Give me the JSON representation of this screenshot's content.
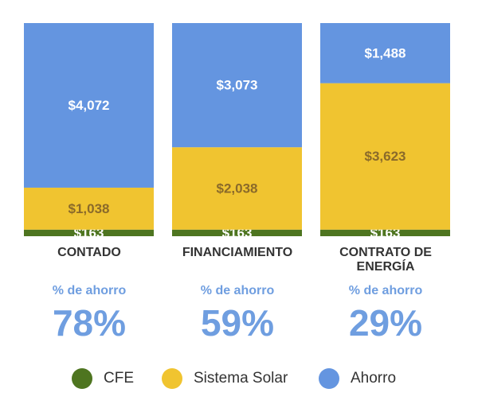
{
  "chart_data": {
    "type": "bar",
    "stacked": true,
    "categories": [
      "CONTADO",
      "FINANCIAMIENTO",
      "CONTRATO DE ENERGÍA"
    ],
    "series": [
      {
        "name": "CFE",
        "color": "#4e7520",
        "values": [
          163,
          163,
          163
        ],
        "labels": [
          "$163",
          "$163",
          "$163"
        ]
      },
      {
        "name": "Sistema Solar",
        "color": "#f0c430",
        "values": [
          1038,
          2038,
          3623
        ],
        "labels": [
          "$1,038",
          "$2,038",
          "$3,623"
        ]
      },
      {
        "name": "Ahorro",
        "color": "#6495e0",
        "values": [
          4072,
          3073,
          1488
        ],
        "labels": [
          "$4,072",
          "$3,073",
          "$1,488"
        ]
      }
    ],
    "title": "",
    "xlabel": "",
    "ylabel": "",
    "legend": "bottom"
  },
  "savings": {
    "label": "% de ahorro",
    "values": [
      "78%",
      "59%",
      "29%"
    ]
  }
}
